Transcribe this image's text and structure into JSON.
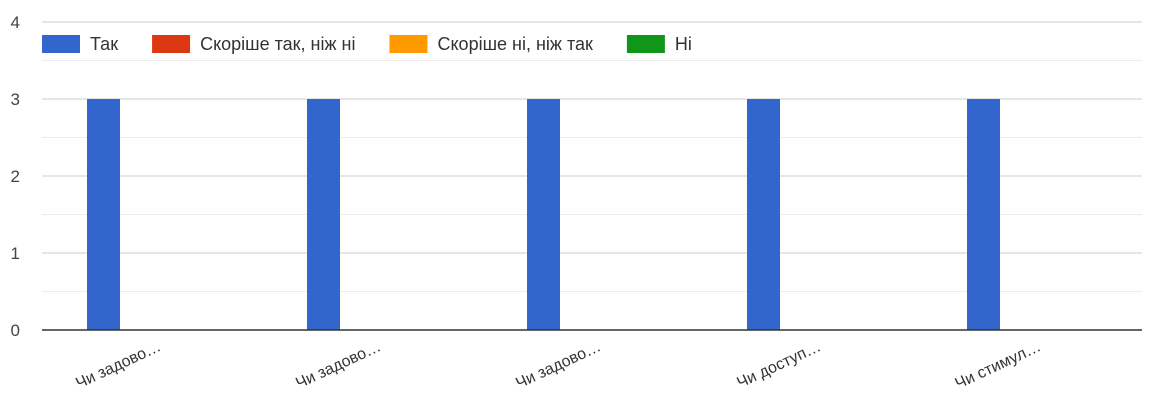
{
  "chart_data": {
    "type": "bar",
    "categories": [
      "Чи задово…",
      "Чи задово…",
      "Чи задово…",
      "Чи доступ…",
      "Чи стимул…"
    ],
    "series": [
      {
        "name": "Так",
        "color": "#3366cc",
        "values": [
          3,
          3,
          3,
          3,
          3
        ]
      },
      {
        "name": "Скоріше так, ніж ні",
        "color": "#dc3912",
        "values": [
          0,
          0,
          0,
          0,
          0
        ]
      },
      {
        "name": "Скоріше ні, ніж так",
        "color": "#ff9900",
        "values": [
          0,
          0,
          0,
          0,
          0
        ]
      },
      {
        "name": "Ні",
        "color": "#109618",
        "values": [
          0,
          0,
          0,
          0,
          0
        ]
      }
    ],
    "ylim": [
      0,
      4
    ],
    "yticks": [
      0,
      1,
      2,
      3,
      4
    ],
    "grid": true,
    "legend_position": "top-left",
    "title": "",
    "xlabel": "",
    "ylabel": ""
  }
}
